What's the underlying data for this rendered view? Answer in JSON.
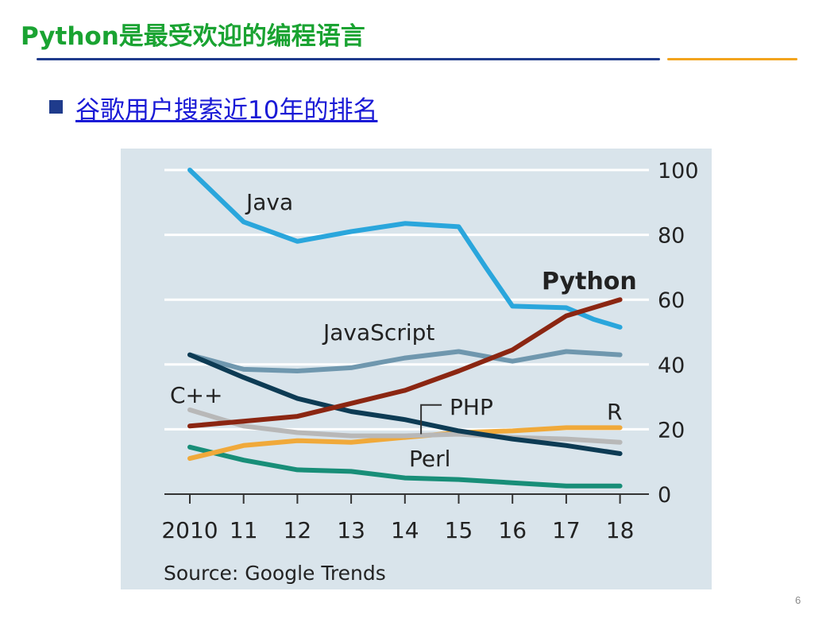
{
  "slide": {
    "title": "Python是最受欢迎的编程语言",
    "bullet_text": "谷歌用户搜索近10年的排名",
    "page_number": "6"
  },
  "colors": {
    "title_green": "#1aa332",
    "rule_blue": "#1f3b8c",
    "rule_orange": "#f2a41d",
    "link_blue": "#1a1ad6",
    "chart_background": "#d9e4eb"
  },
  "chart_data": {
    "type": "line",
    "source": "Source: Google Trends",
    "x": [
      2010,
      2011,
      2012,
      2013,
      2014,
      2015,
      2016,
      2017,
      2018
    ],
    "x_tick_labels": [
      "2010",
      "11",
      "12",
      "13",
      "14",
      "15",
      "16",
      "17",
      "18"
    ],
    "y_ticks": [
      "100",
      "80",
      "60",
      "40",
      "20",
      "0"
    ],
    "ylim": [
      0,
      100
    ],
    "grid": true,
    "y_axis_side": "right",
    "series": [
      {
        "name": "Java",
        "color": "#2aa6dc",
        "bold_label": false,
        "x": [
          2010,
          2011,
          2012,
          2013,
          2014,
          2015,
          2015.5,
          2016,
          2017,
          2017.5,
          2018
        ],
        "values": [
          100,
          84,
          78,
          81,
          83.5,
          82.5,
          70,
          58,
          57.5,
          54,
          51.5
        ]
      },
      {
        "name": "JavaScript",
        "color": "#6f97ae",
        "bold_label": false,
        "x": [
          2010,
          2011,
          2012,
          2013,
          2014,
          2015,
          2016,
          2017,
          2018
        ],
        "values": [
          43,
          38.5,
          38,
          39,
          42,
          44,
          41,
          44,
          43
        ]
      },
      {
        "name": "C++",
        "color": "#0d3b54",
        "bold_label": false,
        "x": [
          2010,
          2011,
          2012,
          2013,
          2014,
          2015,
          2016,
          2017,
          2018
        ],
        "values": [
          43,
          36,
          29.5,
          25.5,
          23,
          19.5,
          17,
          15,
          12.5
        ]
      },
      {
        "name": "Python",
        "color": "#8b2612",
        "bold_label": true,
        "x": [
          2010,
          2011,
          2012,
          2013,
          2014,
          2015,
          2016,
          2017,
          2018
        ],
        "values": [
          21,
          22.5,
          24,
          28,
          32,
          38,
          44.5,
          55,
          60
        ]
      },
      {
        "name": "PHP",
        "color": "#b8b8b8",
        "bold_label": false,
        "x": [
          2010,
          2011,
          2012,
          2013,
          2014,
          2015,
          2016,
          2017,
          2018
        ],
        "values": [
          26,
          21,
          19,
          18,
          18,
          18.5,
          17.5,
          17,
          16
        ]
      },
      {
        "name": "R",
        "color": "#f0a93a",
        "bold_label": false,
        "x": [
          2010,
          2011,
          2012,
          2013,
          2014,
          2015,
          2016,
          2017,
          2018
        ],
        "values": [
          11,
          15,
          16.5,
          16,
          17.5,
          19,
          19.5,
          20.5,
          20.5
        ]
      },
      {
        "name": "Perl",
        "color": "#188e78",
        "bold_label": false,
        "x": [
          2010,
          2011,
          2012,
          2013,
          2014,
          2015,
          2016,
          2017,
          2018
        ],
        "values": [
          14.5,
          10.5,
          7.5,
          7,
          5,
          4.5,
          3.5,
          2.5,
          2.5
        ]
      }
    ]
  }
}
